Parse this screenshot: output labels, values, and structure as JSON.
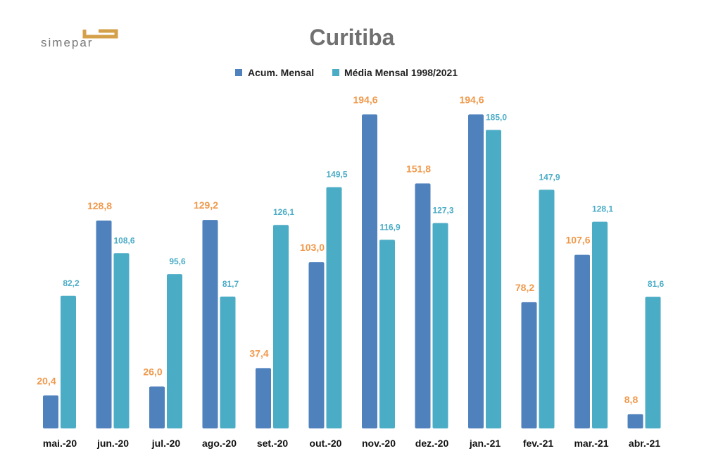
{
  "logo": {
    "text": "simepar"
  },
  "colors": {
    "acum": "#4F81BD",
    "media": "#4BACC6",
    "acum_label": "#F0994C",
    "media_label": "#4BACC6"
  },
  "chart_data": {
    "type": "bar",
    "title": "Curitiba",
    "xlabel": "",
    "ylabel": "",
    "ylim": [
      0,
      200
    ],
    "legend_position": "top",
    "grid": false,
    "categories": [
      "mai.-20",
      "jun.-20",
      "jul.-20",
      "ago.-20",
      "set.-20",
      "out.-20",
      "nov.-20",
      "dez.-20",
      "jan.-21",
      "fev.-21",
      "mar.-21",
      "abr.-21"
    ],
    "series": [
      {
        "name": "Acum. Mensal",
        "values": [
          20.4,
          128.8,
          26.0,
          129.2,
          37.4,
          103.0,
          194.6,
          151.8,
          194.6,
          78.2,
          107.6,
          8.8
        ],
        "labels": [
          "20,4",
          "128,8",
          "26,0",
          "129,2",
          "37,4",
          "103,0",
          "194,6",
          "151,8",
          "194,6",
          "78,2",
          "107,6",
          "8,8"
        ]
      },
      {
        "name": "Média Mensal 1998/2021",
        "values": [
          82.2,
          108.6,
          95.6,
          81.7,
          126.1,
          149.5,
          116.9,
          127.3,
          185.0,
          147.9,
          128.1,
          81.6
        ],
        "labels": [
          "82,2",
          "108,6",
          "95,6",
          "81,7",
          "126,1",
          "149,5",
          "116,9",
          "127,3",
          "185,0",
          "147,9",
          "128,1",
          "81,6"
        ]
      }
    ]
  }
}
